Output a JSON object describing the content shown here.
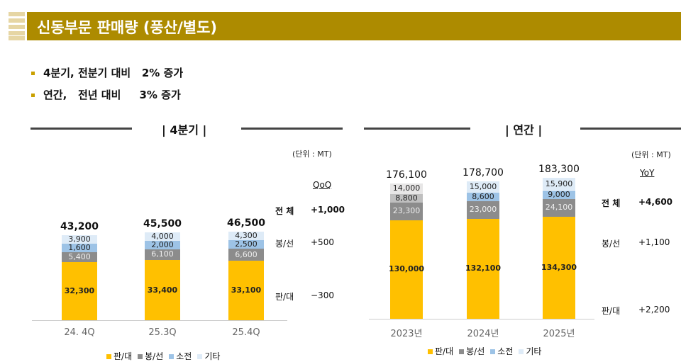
{
  "header": {
    "title": "신동부문 판매량 (풍산/별도)",
    "accent": "#ad8b00"
  },
  "bullets": [
    "4분기, 전분기 대비   2% 증가",
    "연간,   전년 대비     3% 증가"
  ],
  "chart_data": [
    {
      "type": "bar",
      "stacked": true,
      "title": "| 4분기 |",
      "unit": "(단위 : MT)",
      "categories": [
        "24. 4Q",
        "25.3Q",
        "25.4Q"
      ],
      "series": [
        {
          "name": "판/대",
          "color": "#ffc000",
          "values": [
            32300,
            33400,
            33100
          ]
        },
        {
          "name": "봉/선",
          "color": "#8c8c8c",
          "values": [
            5400,
            6100,
            6600
          ]
        },
        {
          "name": "소전",
          "color": "#9dc3e6",
          "values": [
            1600,
            2000,
            2500
          ]
        },
        {
          "name": "기타",
          "color": "#deebf7",
          "values": [
            3900,
            4000,
            4300
          ]
        }
      ],
      "totals": [
        "43,200",
        "45,500",
        "46,500"
      ],
      "comparison": {
        "header": "QoQ",
        "rows": [
          {
            "label": "전 체",
            "value": "+1,000"
          },
          {
            "label": "봉/선",
            "value": "+500"
          },
          {
            "label": "판/대",
            "value": "−300"
          }
        ]
      }
    },
    {
      "type": "bar",
      "stacked": true,
      "title": "| 연간 |",
      "unit": "(단위 : MT)",
      "categories": [
        "2023년",
        "2024년",
        "2025년"
      ],
      "series": [
        {
          "name": "판/대",
          "color": "#ffc000",
          "values": [
            130000,
            132100,
            134300
          ]
        },
        {
          "name": "봉/선",
          "color": "#8c8c8c",
          "values": [
            23300,
            23000,
            24100
          ]
        },
        {
          "name": "소전",
          "color": "#9dc3e6",
          "values": [
            8800,
            8600,
            9000
          ]
        },
        {
          "name": "기타",
          "color": "#deebf7",
          "values": [
            14000,
            15000,
            15900
          ]
        }
      ],
      "first_bar_colors": [
        "#ffc000",
        "#8c8c8c",
        "#bfbfbf",
        "#e7e6e6"
      ],
      "totals": [
        "176,100",
        "178,700",
        "183,300"
      ],
      "comparison": {
        "header": "YoY",
        "rows": [
          {
            "label": "전 체",
            "value": "+4,600"
          },
          {
            "label": "봉/선",
            "value": "+1,100"
          },
          {
            "label": "판/대",
            "value": "+2,200"
          }
        ]
      }
    }
  ]
}
